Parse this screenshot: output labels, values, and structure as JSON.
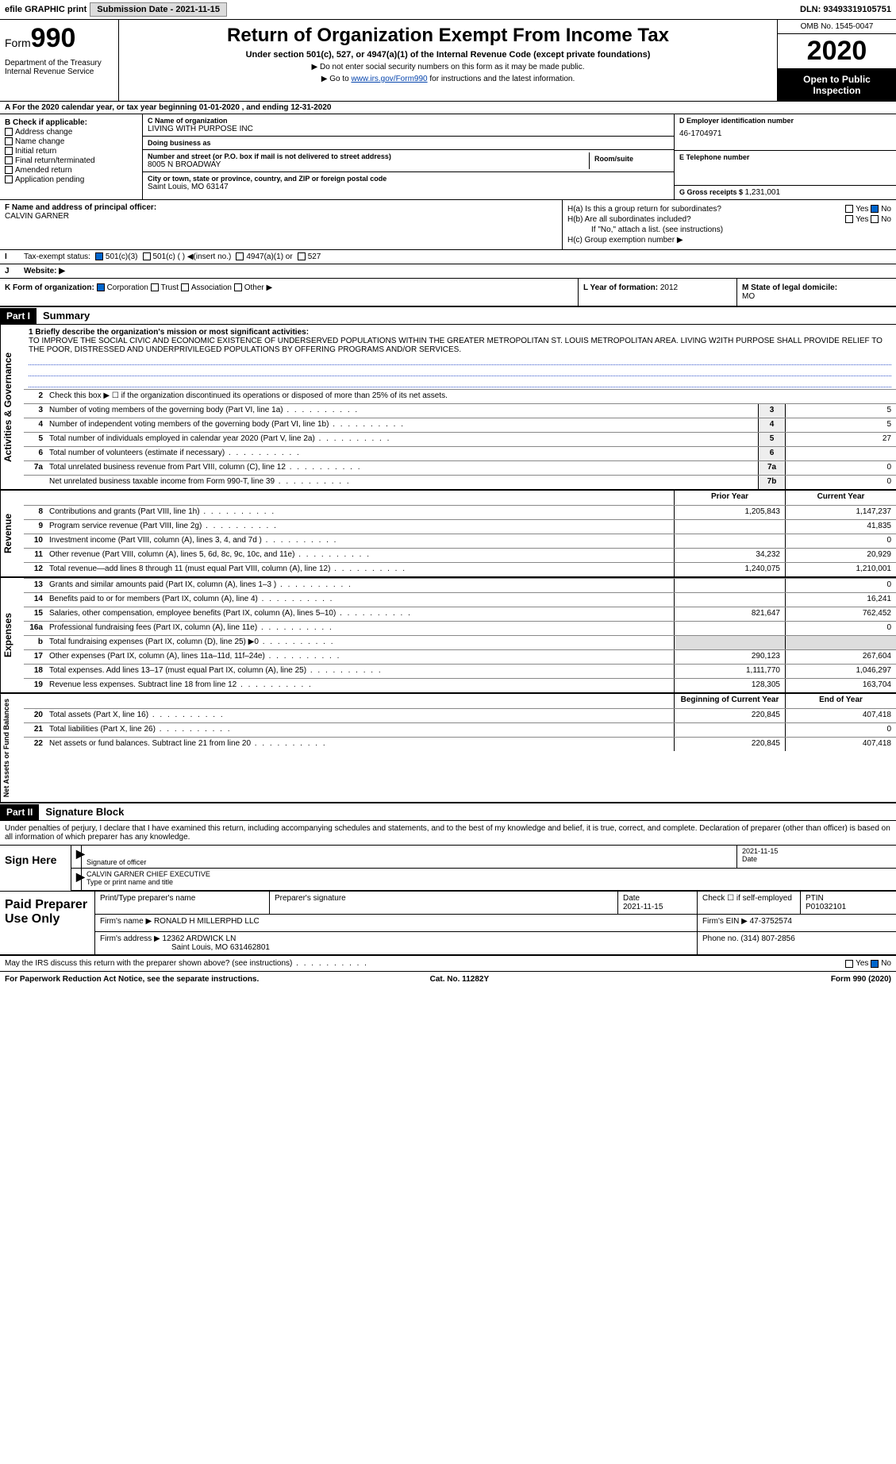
{
  "topbar": {
    "efile": "efile GRAPHIC print",
    "submission_label": "Submission Date - ",
    "submission_date": "2021-11-15",
    "dln_label": "DLN: ",
    "dln": "93493319105751"
  },
  "header": {
    "form_prefix": "Form",
    "form_number": "990",
    "dept": "Department of the Treasury\nInternal Revenue Service",
    "title": "Return of Organization Exempt From Income Tax",
    "subtitle": "Under section 501(c), 527, or 4947(a)(1) of the Internal Revenue Code (except private foundations)",
    "note1": "▶ Do not enter social security numbers on this form as it may be made public.",
    "note2_pre": "▶ Go to ",
    "note2_link": "www.irs.gov/Form990",
    "note2_post": " for instructions and the latest information.",
    "omb": "OMB No. 1545-0047",
    "year": "2020",
    "open_pub": "Open to Public Inspection"
  },
  "period": {
    "text": "A For the 2020 calendar year, or tax year beginning 01-01-2020   , and ending 12-31-2020"
  },
  "boxB": {
    "label": "B Check if applicable:",
    "items": [
      "Address change",
      "Name change",
      "Initial return",
      "Final return/terminated",
      "Amended return",
      "Application pending"
    ]
  },
  "boxC": {
    "name_label": "C Name of organization",
    "name": "LIVING WITH PURPOSE INC",
    "dba_label": "Doing business as",
    "dba": "",
    "street_label": "Number and street (or P.O. box if mail is not delivered to street address)",
    "street": "8005 N BROADWAY",
    "room_label": "Room/suite",
    "room": "",
    "city_label": "City or town, state or province, country, and ZIP or foreign postal code",
    "city": "Saint Louis, MO  63147"
  },
  "boxD": {
    "label": "D Employer identification number",
    "value": "46-1704971"
  },
  "boxE": {
    "label": "E Telephone number",
    "value": ""
  },
  "boxG": {
    "label": "G Gross receipts $ ",
    "value": "1,231,001"
  },
  "boxF": {
    "label": "F  Name and address of principal officer:",
    "name": "CALVIN GARNER"
  },
  "boxH": {
    "a": "H(a)  Is this a group return for subordinates?",
    "a_yes": "Yes",
    "a_no": "No",
    "b": "H(b)  Are all subordinates included?",
    "b_yes": "Yes",
    "b_no": "No",
    "b_note": "If \"No,\" attach a list. (see instructions)",
    "c": "H(c)  Group exemption number ▶"
  },
  "boxI": {
    "label": "Tax-exempt status:",
    "opts": [
      "501(c)(3)",
      "501(c) (  ) ◀(insert no.)",
      "4947(a)(1) or",
      "527"
    ]
  },
  "boxJ": {
    "label": "Website: ▶",
    "value": ""
  },
  "boxK": {
    "label": "K Form of organization:",
    "opts": [
      "Corporation",
      "Trust",
      "Association",
      "Other ▶"
    ]
  },
  "boxL": {
    "label": "L Year of formation: ",
    "value": "2012"
  },
  "boxM": {
    "label": "M State of legal domicile:",
    "value": "MO"
  },
  "part1": {
    "hdr": "Part I",
    "title": "Summary",
    "sideA": "Activities & Governance",
    "sideB": "Revenue",
    "sideC": "Expenses",
    "sideD": "Net Assets or Fund Balances",
    "line1_label": "1  Briefly describe the organization's mission or most significant activities:",
    "mission": "TO IMPROVE THE SOCIAL CIVIC AND ECONOMIC EXISTENCE OF UNDERSERVED POPULATIONS WITHIN THE GREATER METROPOLITAN ST. LOUIS METROPOLITAN AREA. LIVING W2ITH PURPOSE SHALL PROVIDE RELIEF TO THE POOR, DISTRESSED AND UNDERPRIVILEGED POPULATIONS BY OFFERING PROGRAMS AND/OR SERVICES.",
    "line2": "Check this box ▶ ☐  if the organization discontinued its operations or disposed of more than 25% of its net assets.",
    "lines_gov": [
      {
        "n": "3",
        "d": "Number of voting members of the governing body (Part VI, line 1a)",
        "box": "3",
        "v": "5"
      },
      {
        "n": "4",
        "d": "Number of independent voting members of the governing body (Part VI, line 1b)",
        "box": "4",
        "v": "5"
      },
      {
        "n": "5",
        "d": "Total number of individuals employed in calendar year 2020 (Part V, line 2a)",
        "box": "5",
        "v": "27"
      },
      {
        "n": "6",
        "d": "Total number of volunteers (estimate if necessary)",
        "box": "6",
        "v": ""
      },
      {
        "n": "7a",
        "d": "Total unrelated business revenue from Part VIII, column (C), line 12",
        "box": "7a",
        "v": "0"
      },
      {
        "n": "",
        "d": "Net unrelated business taxable income from Form 990-T, line 39",
        "box": "7b",
        "v": "0"
      }
    ],
    "col_prior": "Prior Year",
    "col_current": "Current Year",
    "lines_rev": [
      {
        "n": "8",
        "d": "Contributions and grants (Part VIII, line 1h)",
        "p": "1,205,843",
        "c": "1,147,237"
      },
      {
        "n": "9",
        "d": "Program service revenue (Part VIII, line 2g)",
        "p": "",
        "c": "41,835"
      },
      {
        "n": "10",
        "d": "Investment income (Part VIII, column (A), lines 3, 4, and 7d )",
        "p": "",
        "c": "0"
      },
      {
        "n": "11",
        "d": "Other revenue (Part VIII, column (A), lines 5, 6d, 8c, 9c, 10c, and 11e)",
        "p": "34,232",
        "c": "20,929"
      },
      {
        "n": "12",
        "d": "Total revenue—add lines 8 through 11 (must equal Part VIII, column (A), line 12)",
        "p": "1,240,075",
        "c": "1,210,001"
      }
    ],
    "lines_exp": [
      {
        "n": "13",
        "d": "Grants and similar amounts paid (Part IX, column (A), lines 1–3 )",
        "p": "",
        "c": "0"
      },
      {
        "n": "14",
        "d": "Benefits paid to or for members (Part IX, column (A), line 4)",
        "p": "",
        "c": "16,241"
      },
      {
        "n": "15",
        "d": "Salaries, other compensation, employee benefits (Part IX, column (A), lines 5–10)",
        "p": "821,647",
        "c": "762,452"
      },
      {
        "n": "16a",
        "d": "Professional fundraising fees (Part IX, column (A), line 11e)",
        "p": "",
        "c": "0"
      },
      {
        "n": "b",
        "d": "Total fundraising expenses (Part IX, column (D), line 25) ▶0",
        "p": "shade",
        "c": "shade"
      },
      {
        "n": "17",
        "d": "Other expenses (Part IX, column (A), lines 11a–11d, 11f–24e)",
        "p": "290,123",
        "c": "267,604"
      },
      {
        "n": "18",
        "d": "Total expenses. Add lines 13–17 (must equal Part IX, column (A), line 25)",
        "p": "1,111,770",
        "c": "1,046,297"
      },
      {
        "n": "19",
        "d": "Revenue less expenses. Subtract line 18 from line 12",
        "p": "128,305",
        "c": "163,704"
      }
    ],
    "col_begin": "Beginning of Current Year",
    "col_end": "End of Year",
    "lines_net": [
      {
        "n": "20",
        "d": "Total assets (Part X, line 16)",
        "p": "220,845",
        "c": "407,418"
      },
      {
        "n": "21",
        "d": "Total liabilities (Part X, line 26)",
        "p": "",
        "c": "0"
      },
      {
        "n": "22",
        "d": "Net assets or fund balances. Subtract line 21 from line 20",
        "p": "220,845",
        "c": "407,418"
      }
    ]
  },
  "part2": {
    "hdr": "Part II",
    "title": "Signature Block",
    "decl": "Under penalties of perjury, I declare that I have examined this return, including accompanying schedules and statements, and to the best of my knowledge and belief, it is true, correct, and complete. Declaration of preparer (other than officer) is based on all information of which preparer has any knowledge.",
    "sign_here": "Sign Here",
    "sig_officer": "Signature of officer",
    "sig_date": "2021-11-15",
    "date_lbl": "Date",
    "name_title": "CALVIN GARNER  CHIEF EXECUTIVE",
    "type_name": "Type or print name and title",
    "paid_label": "Paid Preparer Use Only",
    "prep_name_lbl": "Print/Type preparer's name",
    "prep_name": "",
    "prep_sig_lbl": "Preparer's signature",
    "prep_date_lbl": "Date",
    "prep_date": "2021-11-15",
    "check_self": "Check ☐ if self-employed",
    "ptin_lbl": "PTIN",
    "ptin": "P01032101",
    "firm_name_lbl": "Firm's name      ▶ ",
    "firm_name": "RONALD H MILLERPHD LLC",
    "firm_ein_lbl": "Firm's EIN ▶ ",
    "firm_ein": "47-3752574",
    "firm_addr_lbl": "Firm's address ▶ ",
    "firm_addr": "12362 ARDWICK LN",
    "firm_addr2": "Saint Louis, MO  631462801",
    "phone_lbl": "Phone no. ",
    "phone": "(314) 807-2856",
    "may_discuss": "May the IRS discuss this return with the preparer shown above? (see instructions)",
    "yes": "Yes",
    "no": "No"
  },
  "footer": {
    "left": "For Paperwork Reduction Act Notice, see the separate instructions.",
    "mid": "Cat. No. 11282Y",
    "right": "Form 990 (2020)"
  }
}
